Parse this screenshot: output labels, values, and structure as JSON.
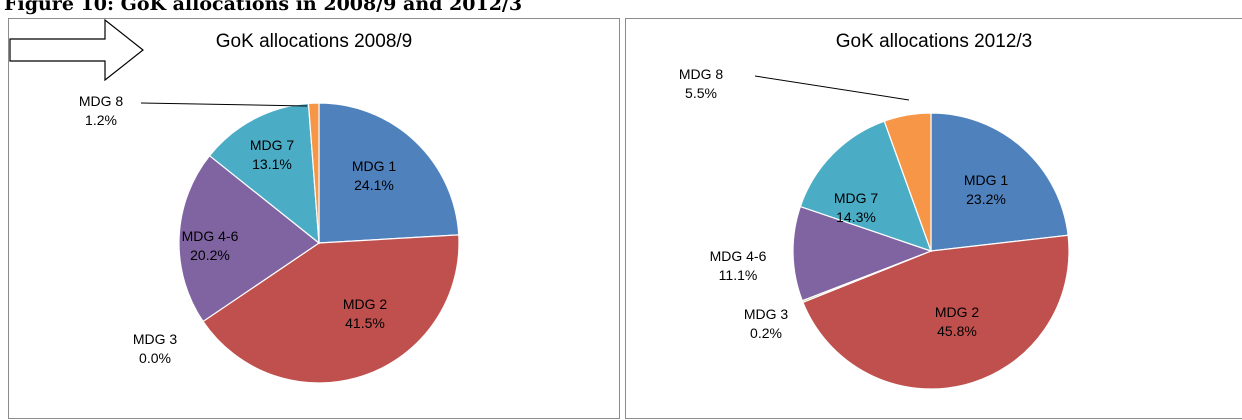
{
  "caption": "Figure 10: GoK allocations in 2008/9 and 2012/3",
  "colors": {
    "MDG 1": "#4f81bd",
    "MDG 2": "#c0504d",
    "MDG 3": "#9bbb59",
    "MDG 4-6": "#8064a2",
    "MDG 7": "#4bacc6",
    "MDG 8": "#f79646"
  },
  "chart_data": [
    {
      "type": "pie",
      "title": "GoK allocations 2008/9",
      "slices": [
        {
          "name": "MDG 1",
          "value": 24.1,
          "label": "24.1%"
        },
        {
          "name": "MDG 2",
          "value": 41.5,
          "label": "41.5%"
        },
        {
          "name": "MDG 3",
          "value": 0.0,
          "label": "0.0%"
        },
        {
          "name": "MDG 4-6",
          "value": 20.2,
          "label": "20.2%"
        },
        {
          "name": "MDG 7",
          "value": 13.1,
          "label": "13.1%"
        },
        {
          "name": "MDG 8",
          "value": 1.2,
          "label": "1.2%"
        }
      ]
    },
    {
      "type": "pie",
      "title": "GoK allocations 2012/3",
      "slices": [
        {
          "name": "MDG 1",
          "value": 23.2,
          "label": "23.2%"
        },
        {
          "name": "MDG 2",
          "value": 45.8,
          "label": "45.8%"
        },
        {
          "name": "MDG 3",
          "value": 0.2,
          "label": "0.2%"
        },
        {
          "name": "MDG 4-6",
          "value": 11.1,
          "label": "11.1%"
        },
        {
          "name": "MDG 7",
          "value": 14.3,
          "label": "14.3%"
        },
        {
          "name": "MDG 8",
          "value": 5.5,
          "label": "5.5%"
        }
      ]
    }
  ]
}
